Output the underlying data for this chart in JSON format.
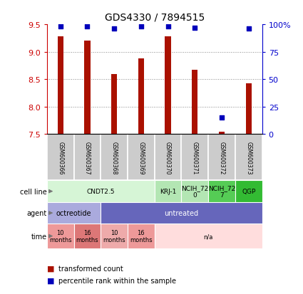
{
  "title": "GDS4330 / 7894515",
  "samples": [
    "GSM600366",
    "GSM600367",
    "GSM600368",
    "GSM600369",
    "GSM600370",
    "GSM600371",
    "GSM600372",
    "GSM600373"
  ],
  "transformed_counts": [
    9.28,
    9.2,
    8.6,
    8.88,
    9.28,
    8.67,
    7.55,
    8.42
  ],
  "percentile_ranks": [
    98,
    98,
    96,
    98,
    98,
    97,
    15,
    96
  ],
  "y_min": 7.5,
  "y_max": 9.5,
  "y_ticks": [
    7.5,
    8.0,
    8.5,
    9.0,
    9.5
  ],
  "y_right_ticks": [
    0,
    25,
    50,
    75,
    100
  ],
  "y_right_labels": [
    "0",
    "25",
    "50",
    "75",
    "100%"
  ],
  "bar_color": "#aa1100",
  "scatter_color": "#0000bb",
  "cell_line_row": [
    {
      "label": "CNDT2.5",
      "start": 0,
      "end": 4,
      "color": "#d6f5d6"
    },
    {
      "label": "KRJ-1",
      "start": 4,
      "end": 5,
      "color": "#b3e6b3"
    },
    {
      "label": "NCIH_72\n0",
      "start": 5,
      "end": 6,
      "color": "#b3e6b3"
    },
    {
      "label": "NCIH_72\n7",
      "start": 6,
      "end": 7,
      "color": "#55cc55"
    },
    {
      "label": "QGP",
      "start": 7,
      "end": 8,
      "color": "#33bb33"
    }
  ],
  "agent_row": [
    {
      "label": "octreotide",
      "start": 0,
      "end": 2,
      "color": "#aaaadd"
    },
    {
      "label": "untreated",
      "start": 2,
      "end": 8,
      "color": "#6666bb"
    }
  ],
  "time_row": [
    {
      "label": "10\nmonths",
      "start": 0,
      "end": 1,
      "color": "#ee9999"
    },
    {
      "label": "16\nmonths",
      "start": 1,
      "end": 2,
      "color": "#dd7777"
    },
    {
      "label": "10\nmonths",
      "start": 2,
      "end": 3,
      "color": "#eeaaaa"
    },
    {
      "label": "16\nmonths",
      "start": 3,
      "end": 4,
      "color": "#ee9999"
    },
    {
      "label": "n/a",
      "start": 4,
      "end": 8,
      "color": "#ffdddd"
    }
  ],
  "gsm_bg_color": "#cccccc",
  "left_label_color": "#cc0000",
  "right_label_color": "#0000cc",
  "grid_color": "#888888",
  "row_label_color": "#555555",
  "agent_text_color_0": "#000000",
  "agent_text_color_1": "#ffffff"
}
